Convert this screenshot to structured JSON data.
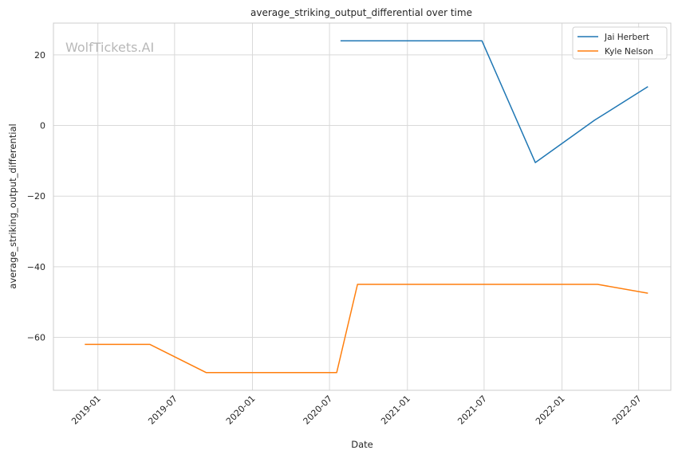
{
  "chart_data": {
    "type": "line",
    "title": "average_striking_output_differential over time",
    "xlabel": "Date",
    "ylabel": "average_striking_output_differential",
    "watermark": "WolfTickets.AI",
    "x_ticks": [
      "2019-01",
      "2019-07",
      "2020-01",
      "2020-07",
      "2021-01",
      "2021-07",
      "2022-01",
      "2022-07"
    ],
    "y_ticks": [
      20,
      0,
      -20,
      -40,
      -60
    ],
    "xlim": [
      "2018-09-18",
      "2022-09-15"
    ],
    "ylim": [
      -75,
      29
    ],
    "grid": true,
    "legend_position": "top-right",
    "series": [
      {
        "name": "Jai Herbert",
        "color": "#1f77b4",
        "points": [
          {
            "x": "2020-07-27",
            "y": 24
          },
          {
            "x": "2021-06-26",
            "y": 24
          },
          {
            "x": "2021-10-30",
            "y": -10.5
          },
          {
            "x": "2022-03-19",
            "y": 1.5
          },
          {
            "x": "2022-07-23",
            "y": 11
          }
        ]
      },
      {
        "name": "Kyle Nelson",
        "color": "#ff7f0e",
        "points": [
          {
            "x": "2018-12-01",
            "y": -62
          },
          {
            "x": "2019-05-04",
            "y": -62
          },
          {
            "x": "2019-09-14",
            "y": -70
          },
          {
            "x": "2020-07-18",
            "y": -70
          },
          {
            "x": "2020-09-05",
            "y": -45
          },
          {
            "x": "2022-03-26",
            "y": -45
          },
          {
            "x": "2022-07-23",
            "y": -47.5
          }
        ]
      }
    ]
  }
}
